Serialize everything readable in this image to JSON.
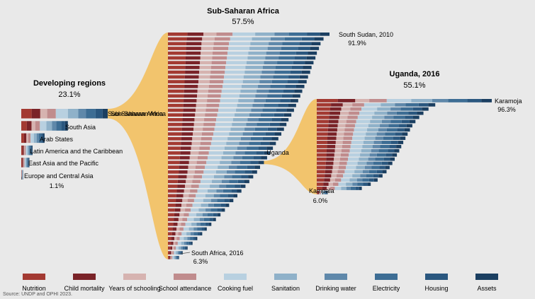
{
  "chart_data": {
    "type": "bar",
    "dimensions": [
      "Nutrition",
      "Child mortality",
      "Years of schooling",
      "School attendance",
      "Cooking fuel",
      "Sanitation",
      "Drinking water",
      "Electricity",
      "Housing",
      "Assets"
    ],
    "colors": [
      "#a33a32",
      "#7a2328",
      "#d6b3b0",
      "#c08c8d",
      "#b8d0e0",
      "#8fb1c9",
      "#5f88aa",
      "#3d6d94",
      "#2a577f",
      "#1b3f61"
    ],
    "panels": {
      "developing": {
        "title": "Developing regions",
        "value_label": "23.1%",
        "bars": [
          {
            "label": "Sub-Saharan Africa",
            "value": 57.5
          },
          {
            "label": "South Asia",
            "value": 31.0
          },
          {
            "label": "Arab States",
            "value": 15.5
          },
          {
            "label": "Latin America and the Caribbean",
            "value": 7.5
          },
          {
            "label": "East Asia and the Pacific",
            "value": 5.4
          },
          {
            "label": "Europe and Central Asia",
            "value": 1.1
          }
        ],
        "last_value_label": "1.1%"
      },
      "ssa": {
        "title": "Sub-Saharan Africa",
        "value_label": "57.5%",
        "top_label": "South Sudan, 2010",
        "top_value_label": "91.9%",
        "bottom_label": "South Africa, 2016",
        "bottom_value_label": "6.3%",
        "values": [
          91.9,
          88.5,
          86.8,
          85.9,
          84.7,
          83.9,
          82.8,
          81.7,
          80.9,
          79.7,
          78.9,
          77.6,
          76.4,
          75.3,
          74.1,
          72.9,
          71.7,
          70.2,
          68.6,
          67.4,
          66.0,
          64.5,
          62.8,
          61.4,
          59.7,
          58.2,
          56.4,
          54.6,
          52.4,
          50.7,
          48.5,
          46.3,
          44.1,
          41.8,
          39.5,
          37.2,
          34.8,
          32.4,
          29.9,
          27.3,
          24.7,
          22.1,
          19.5,
          16.7,
          14.0,
          11.2,
          8.4,
          6.3
        ]
      },
      "uganda": {
        "title": "Uganda, 2016",
        "value_label": "55.1%",
        "top_label": "Karamoja",
        "top_value_label": "96.3%",
        "bottom_label": "Kampala",
        "bottom_value_label": "6.0%",
        "values": [
          96.3,
          65.2,
          61.5,
          58.7,
          56.4,
          54.3,
          52.6,
          51.3,
          50.0,
          48.8,
          47.6,
          46.5,
          45.4,
          44.1,
          42.9,
          41.6,
          40.1,
          38.4,
          36.2,
          33.5,
          29.7,
          24.8,
          6.0
        ]
      }
    },
    "connector_labels": [
      "Sub-Saharan Africa",
      "Uganda"
    ],
    "source": "Source: UNDP and OPHI 2023."
  }
}
